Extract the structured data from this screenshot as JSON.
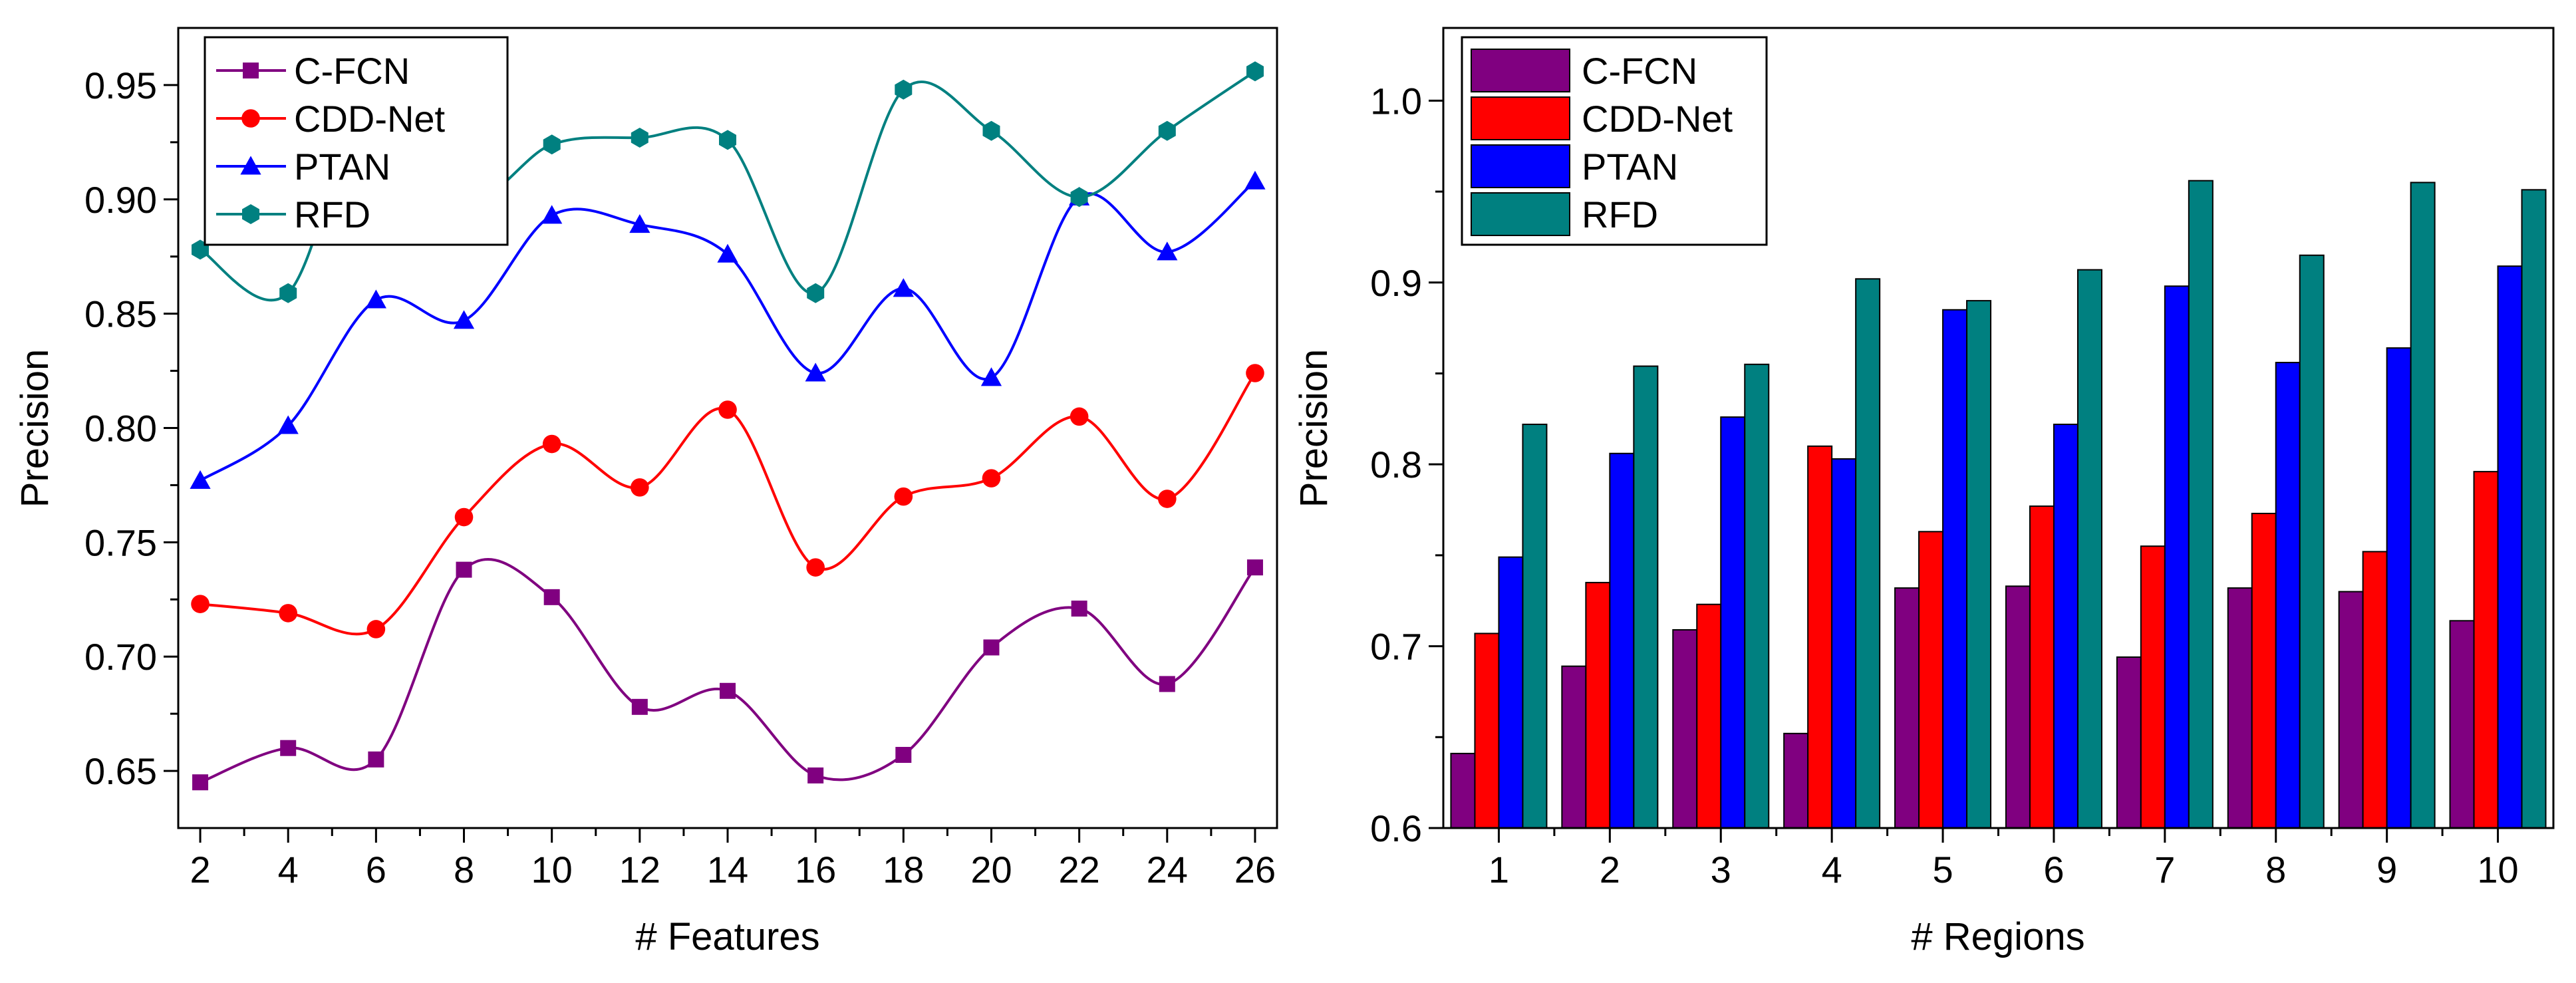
{
  "chart_data": [
    {
      "type": "line",
      "xlabel": "# Features",
      "ylabel": "Precision",
      "xlim": [
        1.5,
        26.5
      ],
      "ylim": [
        0.625,
        0.975
      ],
      "x": [
        2,
        4,
        6,
        8,
        10,
        12,
        14,
        16,
        18,
        20,
        22,
        24,
        26
      ],
      "x_tick_labels": [
        "2",
        "4",
        "6",
        "8",
        "10",
        "12",
        "14",
        "16",
        "18",
        "20",
        "22",
        "24",
        "26"
      ],
      "y_ticks": [
        0.65,
        0.7,
        0.75,
        0.8,
        0.85,
        0.9,
        0.95
      ],
      "y_tick_labels": [
        "0.65",
        "0.70",
        "0.75",
        "0.80",
        "0.85",
        "0.90",
        "0.95"
      ],
      "grid": false,
      "legend_position": "top-left",
      "series": [
        {
          "name": "C-FCN",
          "color": "#800080",
          "marker": "square",
          "values": [
            0.645,
            0.66,
            0.655,
            0.738,
            0.726,
            0.678,
            0.685,
            0.648,
            0.657,
            0.704,
            0.721,
            0.688,
            0.739
          ]
        },
        {
          "name": "CDD-Net",
          "color": "#ff0000",
          "marker": "circle",
          "values": [
            0.723,
            0.719,
            0.712,
            0.761,
            0.793,
            0.774,
            0.808,
            0.739,
            0.77,
            0.778,
            0.805,
            0.769,
            0.824
          ]
        },
        {
          "name": "PTAN",
          "color": "#0000ff",
          "marker": "triangle",
          "values": [
            0.777,
            0.801,
            0.856,
            0.847,
            0.893,
            0.889,
            0.876,
            0.824,
            0.861,
            0.822,
            0.901,
            0.877,
            0.908
          ]
        },
        {
          "name": "RFD",
          "color": "#008080",
          "marker": "hexagon",
          "values": [
            0.878,
            0.859,
            0.952,
            0.9,
            0.924,
            0.927,
            0.926,
            0.859,
            0.948,
            0.93,
            0.901,
            0.93,
            0.956
          ]
        }
      ]
    },
    {
      "type": "bar",
      "xlabel": "# Regions",
      "ylabel": "Precision",
      "ylim": [
        0.6,
        1.04
      ],
      "categories": [
        "1",
        "2",
        "3",
        "4",
        "5",
        "6",
        "7",
        "8",
        "9",
        "10"
      ],
      "y_ticks": [
        0.6,
        0.7,
        0.8,
        0.9,
        1.0
      ],
      "y_tick_labels": [
        "0.6",
        "0.7",
        "0.8",
        "0.9",
        "1.0"
      ],
      "grid": false,
      "legend_position": "top-left",
      "series": [
        {
          "name": "C-FCN",
          "color": "#800080",
          "values": [
            0.641,
            0.689,
            0.709,
            0.652,
            0.732,
            0.733,
            0.694,
            0.732,
            0.73,
            0.714
          ]
        },
        {
          "name": "CDD-Net",
          "color": "#ff0000",
          "values": [
            0.707,
            0.735,
            0.723,
            0.81,
            0.763,
            0.777,
            0.755,
            0.773,
            0.752,
            0.796
          ]
        },
        {
          "name": "PTAN",
          "color": "#0000ff",
          "values": [
            0.749,
            0.806,
            0.826,
            0.803,
            0.885,
            0.822,
            0.898,
            0.856,
            0.864,
            0.909
          ]
        },
        {
          "name": "RFD",
          "color": "#008080",
          "values": [
            0.822,
            0.854,
            0.855,
            0.902,
            0.89,
            0.907,
            0.956,
            0.915,
            0.955,
            0.951
          ]
        }
      ]
    }
  ]
}
